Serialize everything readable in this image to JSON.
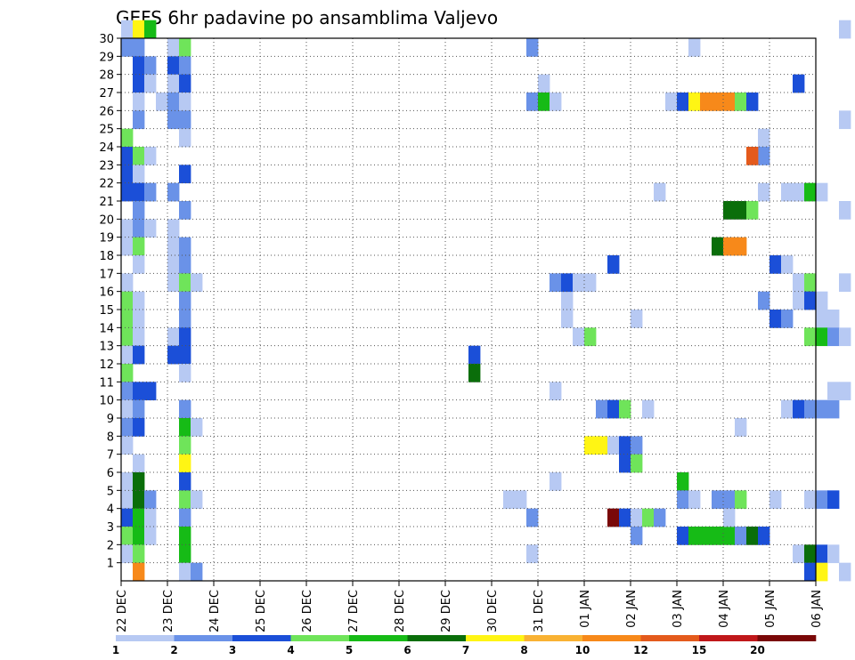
{
  "chart_data": {
    "type": "heatmap",
    "title": "GEFS 6hr padavine po ansamblima Valjevo",
    "xlabel": "",
    "ylabel": "",
    "x_ticks": [
      "22 DEC",
      "23 DEC",
      "24 DEC",
      "25 DEC",
      "26 DEC",
      "27 DEC",
      "28 DEC",
      "29 DEC",
      "30 DEC",
      "31 DEC",
      "01 JAN",
      "02 JAN",
      "03 JAN",
      "04 JAN",
      "05 JAN",
      "06 JAN"
    ],
    "y_ticks": [
      1,
      2,
      3,
      4,
      5,
      6,
      7,
      8,
      9,
      10,
      11,
      12,
      13,
      14,
      15,
      16,
      17,
      18,
      19,
      20,
      21,
      22,
      23,
      24,
      25,
      26,
      27,
      28,
      29,
      30
    ],
    "x_step_hours": 6,
    "x_range_steps": [
      0,
      60
    ],
    "y_range": [
      0,
      30
    ],
    "grid": true,
    "colorbar": {
      "labels": [
        "1",
        "2",
        "3",
        "4",
        "5",
        "6",
        "7",
        "8",
        "10",
        "12",
        "15",
        "20"
      ],
      "colors": [
        "#b7c9f3",
        "#6a92e8",
        "#1b4fd8",
        "#6fe45a",
        "#16bb16",
        "#0a6e0a",
        "#fff514",
        "#f9b233",
        "#f7891a",
        "#e45a1c",
        "#c0171a",
        "#7a0808"
      ]
    },
    "cells": [
      [
        0,
        30,
        0
      ],
      [
        1,
        30,
        6
      ],
      [
        2,
        30,
        4
      ],
      [
        0,
        29,
        1
      ],
      [
        1,
        29,
        1
      ],
      [
        4,
        29,
        0
      ],
      [
        5,
        29,
        3
      ],
      [
        1,
        28,
        2
      ],
      [
        2,
        28,
        1
      ],
      [
        4,
        28,
        2
      ],
      [
        5,
        28,
        1
      ],
      [
        1,
        27,
        2
      ],
      [
        2,
        27,
        0
      ],
      [
        4,
        27,
        0
      ],
      [
        5,
        27,
        2
      ],
      [
        1,
        26,
        0
      ],
      [
        3,
        26,
        0
      ],
      [
        4,
        26,
        1
      ],
      [
        5,
        26,
        0
      ],
      [
        1,
        25,
        1
      ],
      [
        4,
        25,
        1
      ],
      [
        5,
        25,
        1
      ],
      [
        0,
        24,
        3
      ],
      [
        5,
        24,
        0
      ],
      [
        0,
        23,
        2
      ],
      [
        1,
        23,
        3
      ],
      [
        2,
        23,
        0
      ],
      [
        0,
        22,
        2
      ],
      [
        1,
        22,
        0
      ],
      [
        5,
        22,
        2
      ],
      [
        0,
        21,
        2
      ],
      [
        1,
        21,
        2
      ],
      [
        2,
        21,
        1
      ],
      [
        4,
        21,
        1
      ],
      [
        1,
        20,
        1
      ],
      [
        5,
        20,
        1
      ],
      [
        0,
        19,
        0
      ],
      [
        1,
        19,
        1
      ],
      [
        2,
        19,
        0
      ],
      [
        4,
        19,
        0
      ],
      [
        0,
        18,
        0
      ],
      [
        1,
        18,
        3
      ],
      [
        4,
        18,
        0
      ],
      [
        5,
        18,
        1
      ],
      [
        1,
        17,
        0
      ],
      [
        4,
        17,
        0
      ],
      [
        5,
        17,
        1
      ],
      [
        0,
        16,
        0
      ],
      [
        4,
        16,
        0
      ],
      [
        5,
        16,
        3
      ],
      [
        6,
        16,
        0
      ],
      [
        0,
        15,
        3
      ],
      [
        1,
        15,
        0
      ],
      [
        5,
        15,
        1
      ],
      [
        0,
        14,
        3
      ],
      [
        1,
        14,
        0
      ],
      [
        5,
        14,
        1
      ],
      [
        0,
        13,
        3
      ],
      [
        1,
        13,
        0
      ],
      [
        4,
        13,
        0
      ],
      [
        5,
        13,
        2
      ],
      [
        0,
        12,
        0
      ],
      [
        1,
        12,
        2
      ],
      [
        4,
        12,
        2
      ],
      [
        5,
        12,
        2
      ],
      [
        0,
        11,
        3
      ],
      [
        5,
        11,
        0
      ],
      [
        0,
        10,
        1
      ],
      [
        1,
        10,
        2
      ],
      [
        2,
        10,
        2
      ],
      [
        0,
        9,
        0
      ],
      [
        1,
        9,
        1
      ],
      [
        5,
        9,
        1
      ],
      [
        0,
        8,
        1
      ],
      [
        1,
        8,
        2
      ],
      [
        5,
        8,
        4
      ],
      [
        6,
        8,
        0
      ],
      [
        0,
        7,
        0
      ],
      [
        5,
        7,
        3
      ],
      [
        1,
        6,
        0
      ],
      [
        5,
        6,
        6
      ],
      [
        0,
        5,
        0
      ],
      [
        1,
        5,
        5
      ],
      [
        5,
        5,
        2
      ],
      [
        0,
        4,
        0
      ],
      [
        1,
        4,
        5
      ],
      [
        2,
        4,
        1
      ],
      [
        5,
        4,
        3
      ],
      [
        6,
        4,
        0
      ],
      [
        0,
        3,
        2
      ],
      [
        1,
        3,
        4
      ],
      [
        2,
        3,
        0
      ],
      [
        5,
        3,
        1
      ],
      [
        0,
        2,
        3
      ],
      [
        1,
        2,
        4
      ],
      [
        2,
        2,
        0
      ],
      [
        5,
        2,
        4
      ],
      [
        0,
        1,
        0
      ],
      [
        1,
        1,
        3
      ],
      [
        5,
        1,
        4
      ],
      [
        1,
        0,
        8
      ],
      [
        5,
        0,
        0
      ],
      [
        6,
        0,
        1
      ],
      [
        30,
        12,
        2
      ],
      [
        30,
        11,
        5
      ],
      [
        35,
        29,
        1
      ],
      [
        36,
        27,
        0
      ],
      [
        35,
        26,
        1
      ],
      [
        36,
        26,
        4
      ],
      [
        37,
        26,
        0
      ],
      [
        38,
        15,
        0
      ],
      [
        37,
        16,
        1
      ],
      [
        38,
        16,
        2
      ],
      [
        38,
        14,
        0
      ],
      [
        39,
        13,
        0
      ],
      [
        40,
        13,
        3
      ],
      [
        37,
        10,
        0
      ],
      [
        37,
        5,
        0
      ],
      [
        33,
        4,
        0
      ],
      [
        34,
        4,
        0
      ],
      [
        35,
        3,
        1
      ],
      [
        35,
        1,
        0
      ],
      [
        40,
        7,
        6
      ],
      [
        41,
        7,
        6
      ],
      [
        42,
        7,
        0
      ],
      [
        43,
        7,
        2
      ],
      [
        44,
        7,
        1
      ],
      [
        43,
        6,
        2
      ],
      [
        44,
        6,
        3
      ],
      [
        41,
        9,
        1
      ],
      [
        42,
        9,
        2
      ],
      [
        43,
        9,
        3
      ],
      [
        39,
        16,
        0
      ],
      [
        40,
        16,
        0
      ],
      [
        42,
        17,
        2
      ],
      [
        44,
        14,
        0
      ],
      [
        42,
        3,
        11
      ],
      [
        43,
        3,
        2
      ],
      [
        44,
        3,
        0
      ],
      [
        45,
        3,
        3
      ],
      [
        46,
        3,
        1
      ],
      [
        44,
        2,
        1
      ],
      [
        45,
        9,
        0
      ],
      [
        46,
        21,
        0
      ],
      [
        47,
        26,
        0
      ],
      [
        48,
        26,
        2
      ],
      [
        49,
        26,
        6
      ],
      [
        50,
        26,
        8
      ],
      [
        51,
        26,
        8
      ],
      [
        52,
        26,
        8
      ],
      [
        53,
        26,
        3
      ],
      [
        54,
        26,
        2
      ],
      [
        49,
        29,
        0
      ],
      [
        52,
        20,
        5
      ],
      [
        53,
        20,
        5
      ],
      [
        54,
        20,
        3
      ],
      [
        51,
        18,
        5
      ],
      [
        52,
        18,
        8
      ],
      [
        53,
        18,
        8
      ],
      [
        48,
        5,
        4
      ],
      [
        48,
        4,
        1
      ],
      [
        49,
        4,
        0
      ],
      [
        51,
        4,
        1
      ],
      [
        52,
        4,
        1
      ],
      [
        53,
        4,
        3
      ],
      [
        48,
        2,
        2
      ],
      [
        49,
        2,
        4
      ],
      [
        50,
        2,
        4
      ],
      [
        51,
        2,
        4
      ],
      [
        52,
        2,
        4
      ],
      [
        53,
        2,
        1
      ],
      [
        54,
        2,
        5
      ],
      [
        55,
        2,
        2
      ],
      [
        52,
        3,
        0
      ],
      [
        53,
        8,
        0
      ],
      [
        55,
        24,
        0
      ],
      [
        55,
        23,
        1
      ],
      [
        54,
        23,
        9
      ],
      [
        55,
        21,
        0
      ],
      [
        57,
        21,
        0
      ],
      [
        58,
        21,
        0
      ],
      [
        59,
        21,
        4
      ],
      [
        60,
        21,
        0
      ],
      [
        56,
        17,
        2
      ],
      [
        57,
        17,
        0
      ],
      [
        58,
        16,
        0
      ],
      [
        59,
        16,
        3
      ],
      [
        55,
        15,
        1
      ],
      [
        58,
        15,
        0
      ],
      [
        59,
        15,
        2
      ],
      [
        60,
        15,
        0
      ],
      [
        56,
        14,
        2
      ],
      [
        57,
        14,
        1
      ],
      [
        60,
        14,
        0
      ],
      [
        61,
        14,
        0
      ],
      [
        59,
        13,
        3
      ],
      [
        60,
        13,
        4
      ],
      [
        61,
        13,
        1
      ],
      [
        62,
        13,
        0
      ],
      [
        57,
        9,
        0
      ],
      [
        58,
        9,
        2
      ],
      [
        59,
        9,
        1
      ],
      [
        60,
        9,
        1
      ],
      [
        61,
        9,
        1
      ],
      [
        61,
        10,
        0
      ],
      [
        62,
        10,
        0
      ],
      [
        56,
        4,
        0
      ],
      [
        59,
        4,
        0
      ],
      [
        60,
        4,
        1
      ],
      [
        61,
        4,
        2
      ],
      [
        58,
        1,
        0
      ],
      [
        59,
        1,
        5
      ],
      [
        60,
        1,
        2
      ],
      [
        61,
        1,
        0
      ],
      [
        59,
        0,
        2
      ],
      [
        60,
        0,
        6
      ],
      [
        62,
        0,
        0
      ],
      [
        58,
        27,
        2
      ],
      [
        62,
        25,
        0
      ],
      [
        62,
        16,
        0
      ],
      [
        62,
        20,
        0
      ],
      [
        62,
        30,
        0
      ]
    ]
  }
}
